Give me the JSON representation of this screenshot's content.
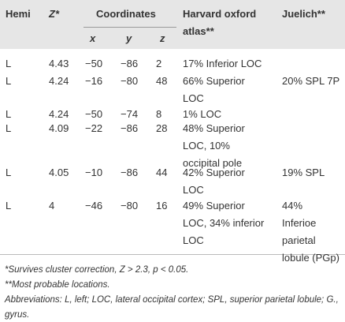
{
  "header": {
    "hemi": "Hemi",
    "z": "Z*",
    "coordinates": "Coordinates",
    "harvard": "Harvard oxford atlas**",
    "juelich": "Juelich**",
    "x": "x",
    "y": "y",
    "zc": "z"
  },
  "table": {
    "rows": [
      {
        "hemi": "L",
        "z": "4.43",
        "x": "−50",
        "y": "−86",
        "zc": "2",
        "harvard": [
          "17% Inferior LOC"
        ],
        "juelich": []
      },
      {
        "hemi": "L",
        "z": "4.24",
        "x": "−16",
        "y": "−80",
        "zc": "48",
        "harvard": [
          "66% Superior",
          "LOC"
        ],
        "juelich": [
          "20% SPL 7P"
        ]
      },
      {
        "hemi": "L",
        "z": "4.24",
        "x": "−50",
        "y": "−74",
        "zc": "8",
        "harvard": [
          "1% LOC"
        ],
        "juelich": []
      },
      {
        "hemi": "L",
        "z": "4.09",
        "x": "−22",
        "y": "−86",
        "zc": "28",
        "harvard": [
          "48% Superior",
          "LOC, 10%",
          "occipital pole"
        ],
        "juelich": []
      },
      {
        "hemi": "L",
        "z": "4.05",
        "x": "−10",
        "y": "−86",
        "zc": "44",
        "harvard": [
          "42% Superior",
          "LOC"
        ],
        "juelich": [
          "19% SPL"
        ]
      },
      {
        "hemi": "L",
        "z": "4",
        "x": "−46",
        "y": "−80",
        "zc": "16",
        "harvard": [
          "49% Superior",
          "LOC, 34% inferior",
          "LOC"
        ],
        "juelich": [
          "44%",
          "Inferioe",
          "parietal",
          "lobule (PGp)"
        ]
      }
    ]
  },
  "footnotes": [
    "*Survives cluster correction, Z > 2.3, p < 0.05.",
    "**Most probable locations.",
    "Abbreviations: L, left; LOC, lateral occipital cortex; SPL, superior parietal lobule; G., gyrus."
  ]
}
